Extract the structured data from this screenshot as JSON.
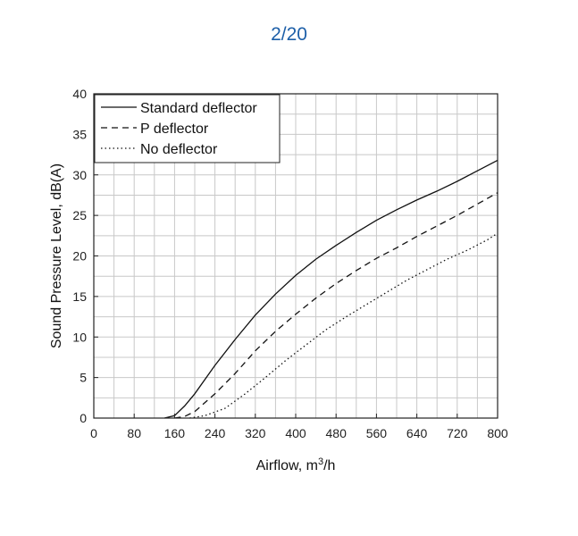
{
  "page_counter": "2/20",
  "chart_data": {
    "type": "line",
    "title": "",
    "xlabel": "Airflow, m",
    "xlabel_sup": "3",
    "xlabel_suffix": "/h",
    "ylabel": "Sound Pressure Level, dB(A)",
    "xlim": [
      0,
      800
    ],
    "ylim": [
      0,
      40
    ],
    "xticks": [
      0,
      80,
      160,
      240,
      320,
      400,
      480,
      560,
      640,
      720,
      800
    ],
    "yticks": [
      0,
      5,
      10,
      15,
      20,
      25,
      30,
      35,
      40
    ],
    "grid": true,
    "legend_position": "top-left",
    "series": [
      {
        "name": "Standard deflector",
        "style": "solid",
        "x": [
          140,
          160,
          180,
          200,
          240,
          280,
          320,
          360,
          400,
          440,
          480,
          520,
          560,
          600,
          640,
          680,
          720,
          760,
          800
        ],
        "y": [
          0,
          0.3,
          1.5,
          3,
          6.5,
          9.7,
          12.7,
          15.3,
          17.6,
          19.6,
          21.3,
          22.9,
          24.4,
          25.7,
          26.9,
          28,
          29.2,
          30.5,
          31.8
        ]
      },
      {
        "name": "P deflector",
        "style": "dashed",
        "x": [
          160,
          180,
          200,
          240,
          280,
          320,
          360,
          400,
          440,
          480,
          520,
          560,
          600,
          640,
          680,
          720,
          760,
          800
        ],
        "y": [
          0,
          0.2,
          0.8,
          3,
          5.5,
          8.3,
          10.7,
          12.8,
          14.8,
          16.6,
          18.2,
          19.7,
          21,
          22.4,
          23.7,
          25,
          26.4,
          27.8
        ]
      },
      {
        "name": "No deflector",
        "style": "dotted",
        "x": [
          190,
          220,
          260,
          300,
          340,
          380,
          420,
          460,
          500,
          540,
          580,
          620,
          660,
          700,
          740,
          780,
          800
        ],
        "y": [
          0,
          0.3,
          1.2,
          3,
          5,
          7.1,
          9,
          10.9,
          12.5,
          14,
          15.5,
          17,
          18.3,
          19.6,
          20.7,
          22,
          22.8
        ]
      }
    ]
  }
}
